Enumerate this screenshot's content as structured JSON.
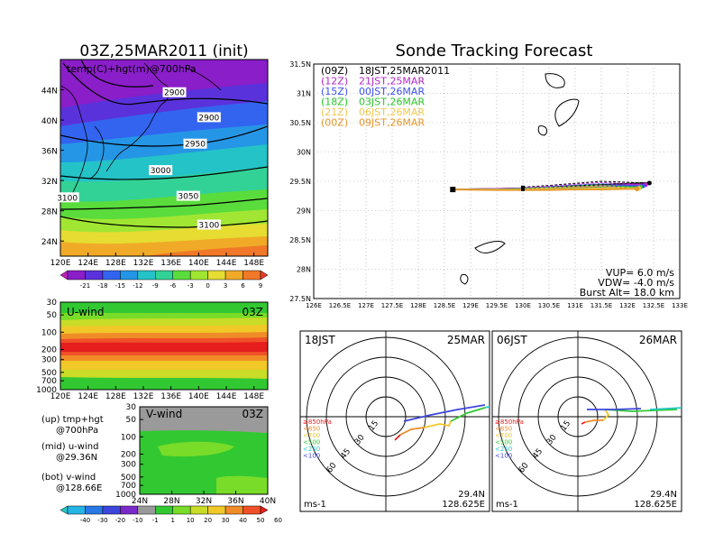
{
  "left_title": "03Z,25MAR2011 (init)",
  "right_title": "Sonde Tracking Forecast",
  "map_panel": {
    "label": "temp(C)+hgt(m)@700hPa",
    "lat_ticks": [
      "44N",
      "40N",
      "36N",
      "32N",
      "28N",
      "24N"
    ],
    "lon_ticks": [
      "120E",
      "124E",
      "128E",
      "132E",
      "136E",
      "140E",
      "144E",
      "148E"
    ],
    "contour_labels": [
      {
        "value": "2900",
        "lon": 136.5,
        "lat": 43.5
      },
      {
        "value": "2900",
        "lon": 141.5,
        "lat": 40.2
      },
      {
        "value": "2950",
        "lon": 139.5,
        "lat": 36.7
      },
      {
        "value": "3000",
        "lon": 134.5,
        "lat": 33.2
      },
      {
        "value": "3050",
        "lon": 138.5,
        "lat": 29.8
      },
      {
        "value": "3100",
        "lon": 121,
        "lat": 29.6
      },
      {
        "value": "3100",
        "lon": 141.5,
        "lat": 26.0
      }
    ]
  },
  "temp_colorbar": {
    "labels": [
      "-21",
      "-18",
      "-15",
      "-12",
      "-9",
      "-6",
      "-3",
      "0",
      "3",
      "6",
      "9"
    ],
    "colors": [
      "#c020c0",
      "#8a1ec8",
      "#5a32dc",
      "#3264f0",
      "#2596e6",
      "#24c3c8",
      "#32d296",
      "#5adc3c",
      "#a0e632",
      "#e6dc32",
      "#f0aa28",
      "#f07828",
      "#e63c28"
    ]
  },
  "u_panel": {
    "label": "U-wind",
    "time": "03Z",
    "p_ticks": [
      "30",
      "50",
      "100",
      "200",
      "300",
      "500",
      "700",
      "1000"
    ],
    "lon_ticks": [
      "120E",
      "124E",
      "128E",
      "132E",
      "136E",
      "140E",
      "144E",
      "148E"
    ]
  },
  "v_panel": {
    "label": "V-wind",
    "time": "03Z",
    "p_ticks": [
      "30",
      "50",
      "100",
      "200",
      "300",
      "500",
      "700",
      "1000"
    ],
    "lat_ticks": [
      "24N",
      "28N",
      "32N",
      "36N",
      "40N"
    ]
  },
  "notes": [
    {
      "line1": "(up) tmp+hgt",
      "line2": "@700hPa"
    },
    {
      "line1": "(mid) u-wind",
      "line2": "@29.36N"
    },
    {
      "line1": "(bot) v-wind",
      "line2": "@128.66E"
    }
  ],
  "wind_colorbar": {
    "labels": [
      "-40",
      "-30",
      "-20",
      "-10",
      "-1",
      "1",
      "10",
      "20",
      "30",
      "40",
      "50",
      "60"
    ],
    "colors": [
      "#24c8c8",
      "#24b4e6",
      "#2878e6",
      "#3c46dc",
      "#7a2ac8",
      "#9a9a9a",
      "#32c832",
      "#78dc28",
      "#c8dc28",
      "#f0c828",
      "#f08c28",
      "#f05028",
      "#e61e1e"
    ]
  },
  "tracking": {
    "lat_ticks": [
      "31.5N",
      "31N",
      "30.5N",
      "30N",
      "29.5N",
      "29N",
      "28.5N",
      "28N",
      "27.5N"
    ],
    "lon_ticks": [
      "126E",
      "126.5E",
      "127E",
      "127.5E",
      "128E",
      "128.5E",
      "129E",
      "129.5E",
      "130E",
      "130.5E",
      "131E",
      "131.5E",
      "132E",
      "132.5E",
      "133E"
    ],
    "legend": [
      {
        "code": "(09Z)",
        "text": "18JST,25MAR2011",
        "color": "#000000"
      },
      {
        "code": "(12Z)",
        "text": "21JST,25MAR",
        "color": "#b428c8"
      },
      {
        "code": "(15Z)",
        "text": "00JST,26MAR",
        "color": "#3c50f0"
      },
      {
        "code": "(18Z)",
        "text": "03JST,26MAR",
        "color": "#28c828"
      },
      {
        "code": "(21Z)",
        "text": "06JST,26MAR",
        "color": "#f0c850"
      },
      {
        "code": "(00Z)",
        "text": "09JST,26MAR",
        "color": "#e69628"
      }
    ],
    "vup": "VUP= 6.0 m/s",
    "vdw": "VDW= -4.0 m/s",
    "burst": "Burst Alt= 18.0 km",
    "launch": {
      "lon": 128.66,
      "lat": 29.36
    },
    "tracks": [
      {
        "color": "#000000",
        "points": [
          [
            128.66,
            29.36
          ],
          [
            129.5,
            29.37
          ],
          [
            130.0,
            29.38
          ],
          [
            130.5,
            29.4
          ],
          [
            131.0,
            29.42
          ],
          [
            131.5,
            29.44
          ],
          [
            132.0,
            29.46
          ],
          [
            132.38,
            29.47
          ]
        ],
        "return": [
          [
            132.38,
            29.47
          ],
          [
            131.5,
            29.5
          ],
          [
            130.5,
            29.43
          ],
          [
            130.0,
            29.4
          ]
        ]
      },
      {
        "color": "#b428c8",
        "points": [
          [
            128.66,
            29.36
          ],
          [
            129.5,
            29.37
          ],
          [
            130.0,
            29.38
          ],
          [
            130.5,
            29.39
          ],
          [
            131.0,
            29.4
          ],
          [
            131.5,
            29.42
          ],
          [
            132.0,
            29.44
          ],
          [
            132.3,
            29.45
          ]
        ],
        "return": [
          [
            132.3,
            29.45
          ],
          [
            131.5,
            29.48
          ],
          [
            130.5,
            29.42
          ],
          [
            130.0,
            29.39
          ]
        ]
      },
      {
        "color": "#3c50f0",
        "points": [
          [
            128.66,
            29.36
          ],
          [
            129.5,
            29.36
          ],
          [
            130.0,
            29.37
          ],
          [
            130.5,
            29.38
          ],
          [
            131.0,
            29.39
          ],
          [
            131.5,
            29.41
          ],
          [
            132.0,
            29.42
          ],
          [
            132.25,
            29.42
          ]
        ],
        "return": [
          [
            132.25,
            29.42
          ],
          [
            131.5,
            29.46
          ],
          [
            130.5,
            29.41
          ],
          [
            130.0,
            29.38
          ]
        ]
      },
      {
        "color": "#28c828",
        "points": [
          [
            128.66,
            29.36
          ],
          [
            129.5,
            29.36
          ],
          [
            130.0,
            29.37
          ],
          [
            130.5,
            29.37
          ],
          [
            131.0,
            29.38
          ],
          [
            131.5,
            29.39
          ],
          [
            132.0,
            29.4
          ],
          [
            132.2,
            29.4
          ]
        ],
        "return": [
          [
            132.2,
            29.4
          ],
          [
            131.5,
            29.44
          ],
          [
            130.5,
            29.4
          ],
          [
            130.0,
            29.38
          ]
        ]
      },
      {
        "color": "#f0c850",
        "points": [
          [
            128.66,
            29.36
          ],
          [
            129.5,
            29.36
          ],
          [
            130.0,
            29.36
          ],
          [
            130.5,
            29.36
          ],
          [
            131.0,
            29.37
          ],
          [
            131.5,
            29.38
          ],
          [
            132.0,
            29.38
          ],
          [
            132.2,
            29.38
          ]
        ],
        "return": [
          [
            132.2,
            29.38
          ],
          [
            131.5,
            29.42
          ],
          [
            130.5,
            29.39
          ],
          [
            130.0,
            29.37
          ]
        ]
      },
      {
        "color": "#e69628",
        "points": [
          [
            128.66,
            29.36
          ],
          [
            129.5,
            29.35
          ],
          [
            130.0,
            29.35
          ],
          [
            130.5,
            29.35
          ],
          [
            131.0,
            29.36
          ],
          [
            131.5,
            29.36
          ],
          [
            132.0,
            29.37
          ],
          [
            132.15,
            29.37
          ]
        ],
        "return": [
          [
            132.15,
            29.37
          ],
          [
            131.5,
            29.41
          ],
          [
            130.5,
            29.38
          ],
          [
            130.0,
            29.37
          ]
        ]
      }
    ],
    "burst_points": [
      [
        132.42,
        29.47
      ],
      [
        132.35,
        29.44
      ],
      [
        132.3,
        29.42
      ],
      [
        132.25,
        29.4
      ],
      [
        132.22,
        29.38
      ],
      [
        132.18,
        29.37
      ]
    ]
  },
  "hodo_left": {
    "time": "18JST",
    "date": "25MAR",
    "lat": "29.4N",
    "lon": "128.625E",
    "unit": "ms-1",
    "ring_labels": [
      "15",
      "30",
      "45",
      "60"
    ],
    "levels": [
      {
        "label": "≥850hPa",
        "color": "#e61e1e"
      },
      {
        "label": "<850",
        "color": "#f08c28"
      },
      {
        "label": "<700",
        "color": "#f0c828"
      },
      {
        "label": "<500",
        "color": "#32c832"
      },
      {
        "label": "<250",
        "color": "#24c8c8"
      },
      {
        "label": "<100",
        "color": "#3c46dc"
      }
    ]
  },
  "hodo_right": {
    "time": "06JST",
    "date": "26MAR",
    "lat": "29.4N",
    "lon": "128.625E",
    "unit": "ms-1",
    "ring_labels": [
      "15",
      "30",
      "45",
      "60"
    ],
    "levels": [
      {
        "label": "≥850hPa",
        "color": "#e61e1e"
      },
      {
        "label": "<850",
        "color": "#f08c28"
      },
      {
        "label": "<700",
        "color": "#f0c828"
      },
      {
        "label": "<500",
        "color": "#32c832"
      },
      {
        "label": "<250",
        "color": "#24c8c8"
      },
      {
        "label": "<100",
        "color": "#3c46dc"
      }
    ]
  },
  "chart_data": [
    {
      "type": "heatmap",
      "title": "03Z,25MAR2011 (init)",
      "subtitle": "temp(C)+hgt(m)@700hPa",
      "x": [
        120,
        124,
        128,
        132,
        136,
        140,
        144,
        148
      ],
      "y": [
        24,
        28,
        32,
        36,
        40,
        44
      ],
      "xlim": [
        120,
        150
      ],
      "ylim": [
        22,
        48
      ],
      "colorbar": [
        -21,
        -18,
        -15,
        -12,
        -9,
        -6,
        -3,
        0,
        3,
        6,
        9
      ],
      "contours": [
        2900,
        2950,
        3000,
        3050,
        3100
      ]
    },
    {
      "type": "heatmap",
      "title": "U-wind",
      "subtitle": "03Z",
      "x": [
        120,
        124,
        128,
        132,
        136,
        140,
        144,
        148
      ],
      "y": [
        30,
        50,
        100,
        200,
        300,
        500,
        700,
        1000
      ]
    },
    {
      "type": "heatmap",
      "title": "V-wind",
      "subtitle": "03Z",
      "x": [
        24,
        28,
        32,
        36,
        40
      ],
      "y": [
        30,
        50,
        100,
        200,
        300,
        500,
        700,
        1000
      ],
      "colorbar": [
        -40,
        -30,
        -20,
        -10,
        -1,
        1,
        10,
        20,
        30,
        40,
        50,
        60
      ]
    },
    {
      "type": "line",
      "title": "Sonde Tracking Forecast",
      "xlim": [
        126,
        133
      ],
      "ylim": [
        27.5,
        31.5
      ],
      "series": [
        {
          "name": "(09Z) 18JST,25MAR2011"
        },
        {
          "name": "(12Z) 21JST,25MAR"
        },
        {
          "name": "(15Z) 00JST,26MAR"
        },
        {
          "name": "(18Z) 03JST,26MAR"
        },
        {
          "name": "(21Z) 06JST,26MAR"
        },
        {
          "name": "(00Z) 09JST,26MAR"
        }
      ]
    }
  ]
}
